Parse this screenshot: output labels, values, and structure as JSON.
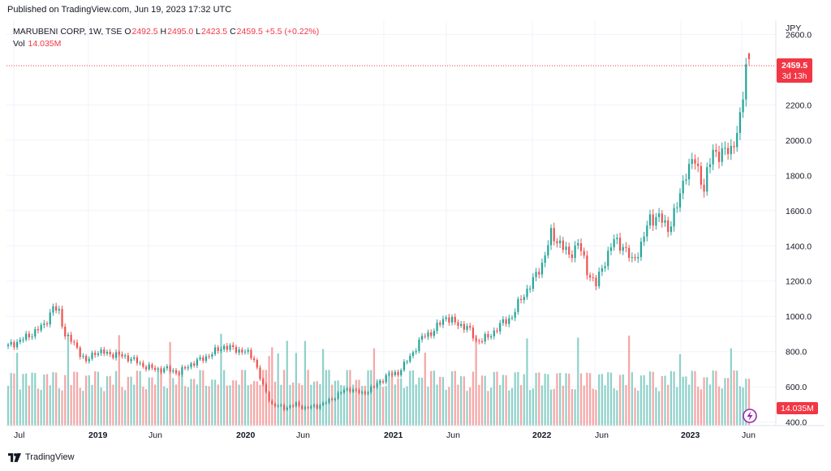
{
  "header": {
    "published": "Published on TradingView.com, Jun 19, 2023 17:32 UTC"
  },
  "legend": {
    "symbol": "MARUBENI CORP, 1W, TSE",
    "o_label": "O",
    "o": "2492.5",
    "h_label": "H",
    "h": "2495.0",
    "l_label": "L",
    "l": "2423.5",
    "c_label": "C",
    "c": "2459.5",
    "change": "+5.5 (+0.22%)",
    "vol_label": "Vol",
    "vol": "14.035M"
  },
  "price_badge": {
    "price": "2459.5",
    "countdown": "3d 13h"
  },
  "volume_badge": "14.035M",
  "footer": {
    "brand": "TradingView"
  },
  "colors": {
    "up": "#26a69a",
    "down": "#ef5350",
    "up_vol": "#8fd1c9",
    "down_vol": "#f5a6a6",
    "grid": "#f0f3fa",
    "badge": "#f23645"
  },
  "chart_data": {
    "type": "candlestick",
    "currency": "JPY",
    "interval": "1W",
    "price_axis": {
      "ticks": [
        "2600.0",
        "2200.0",
        "2000.0",
        "1800.0",
        "1600.0",
        "1400.0",
        "1200.0",
        "1000.0",
        "800.0",
        "600.0",
        "400.0"
      ],
      "range": [
        380,
        2680
      ]
    },
    "time_axis": {
      "labels": [
        "Jul",
        "2019",
        "Jun",
        "2020",
        "Jun",
        "2021",
        "Jun",
        "2022",
        "Jun",
        "2023",
        "Jun"
      ]
    },
    "anchors": [
      [
        0,
        830
      ],
      [
        6,
        880
      ],
      [
        12,
        950
      ],
      [
        15,
        1050
      ],
      [
        17,
        1020
      ],
      [
        19,
        900
      ],
      [
        23,
        820
      ],
      [
        26,
        740
      ],
      [
        29,
        800
      ],
      [
        33,
        790
      ],
      [
        37,
        780
      ],
      [
        41,
        760
      ],
      [
        45,
        720
      ],
      [
        49,
        700
      ],
      [
        53,
        700
      ],
      [
        57,
        680
      ],
      [
        61,
        730
      ],
      [
        65,
        760
      ],
      [
        69,
        800
      ],
      [
        72,
        830
      ],
      [
        75,
        815
      ],
      [
        79,
        800
      ],
      [
        82,
        760
      ],
      [
        85,
        600
      ],
      [
        88,
        500
      ],
      [
        92,
        480
      ],
      [
        96,
        500
      ],
      [
        99,
        480
      ],
      [
        103,
        490
      ],
      [
        107,
        520
      ],
      [
        111,
        570
      ],
      [
        114,
        590
      ],
      [
        118,
        560
      ],
      [
        122,
        600
      ],
      [
        126,
        660
      ],
      [
        130,
        680
      ],
      [
        134,
        770
      ],
      [
        138,
        880
      ],
      [
        142,
        920
      ],
      [
        146,
        1000
      ],
      [
        149,
        960
      ],
      [
        153,
        940
      ],
      [
        156,
        860
      ],
      [
        160,
        880
      ],
      [
        164,
        950
      ],
      [
        168,
        1000
      ],
      [
        171,
        1100
      ],
      [
        175,
        1200
      ],
      [
        178,
        1300
      ],
      [
        181,
        1460
      ],
      [
        184,
        1420
      ],
      [
        187,
        1340
      ],
      [
        190,
        1420
      ],
      [
        193,
        1260
      ],
      [
        196,
        1180
      ],
      [
        199,
        1320
      ],
      [
        202,
        1430
      ],
      [
        205,
        1400
      ],
      [
        208,
        1310
      ],
      [
        211,
        1400
      ],
      [
        214,
        1560
      ],
      [
        217,
        1560
      ],
      [
        220,
        1500
      ],
      [
        223,
        1620
      ],
      [
        226,
        1830
      ],
      [
        229,
        1880
      ],
      [
        232,
        1730
      ],
      [
        235,
        1940
      ],
      [
        238,
        1920
      ],
      [
        241,
        1950
      ],
      [
        244,
        2100
      ],
      [
        245,
        2250
      ],
      [
        246,
        2430
      ],
      [
        247,
        2459
      ]
    ],
    "vol_scale_max": 45
  }
}
